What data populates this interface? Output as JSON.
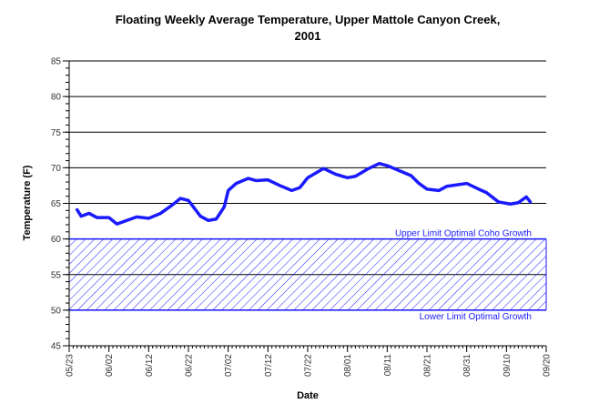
{
  "chart_data": {
    "type": "line",
    "title": [
      "Floating Weekly Average Temperature, Upper Mattole Canyon Creek,",
      "2001"
    ],
    "xlabel": "Date",
    "ylabel": "Temperature (F)",
    "xlim": [
      "05/23",
      "09/20"
    ],
    "xticks": [
      "05/23",
      "06/02",
      "06/12",
      "06/22",
      "07/02",
      "07/12",
      "07/22",
      "08/01",
      "08/11",
      "08/21",
      "08/31",
      "09/10",
      "09/20"
    ],
    "ylim": [
      45,
      85
    ],
    "yticks": [
      45,
      50,
      55,
      60,
      65,
      70,
      75,
      80,
      85
    ],
    "grid": true,
    "band": {
      "ymin": 50,
      "ymax": 60,
      "color": "#1a1aff"
    },
    "annotations": [
      {
        "text": "Upper Limit Optimal Coho Growth",
        "y": 60
      },
      {
        "text": "Lower Limit Optimal Growth",
        "y": 50
      }
    ],
    "x": [
      "05/25",
      "05/26",
      "05/28",
      "05/30",
      "06/02",
      "06/04",
      "06/07",
      "06/09",
      "06/12",
      "06/15",
      "06/18",
      "06/20",
      "06/22",
      "06/25",
      "06/27",
      "06/29",
      "07/01",
      "07/02",
      "07/04",
      "07/07",
      "07/09",
      "07/12",
      "07/15",
      "07/18",
      "07/20",
      "07/22",
      "07/26",
      "07/29",
      "08/01",
      "08/03",
      "08/06",
      "08/09",
      "08/11",
      "08/14",
      "08/17",
      "08/19",
      "08/21",
      "08/24",
      "08/26",
      "08/31",
      "09/03",
      "09/05",
      "09/08",
      "09/11",
      "09/13",
      "09/15",
      "09/16"
    ],
    "series": [
      {
        "name": "Floating Weekly Average Temperature",
        "color": "#1a1aff",
        "values": [
          64.1,
          63.2,
          63.6,
          63.0,
          63.0,
          62.1,
          62.7,
          63.1,
          62.9,
          63.6,
          64.8,
          65.7,
          65.4,
          63.2,
          62.6,
          62.8,
          64.5,
          66.8,
          67.8,
          68.5,
          68.2,
          68.3,
          67.5,
          66.8,
          67.2,
          68.6,
          69.9,
          69.1,
          68.6,
          68.8,
          69.8,
          70.6,
          70.3,
          69.6,
          68.9,
          67.8,
          67.0,
          66.8,
          67.4,
          67.8,
          67.0,
          66.5,
          65.2,
          64.9,
          65.1,
          65.9,
          65.2
        ]
      }
    ]
  }
}
